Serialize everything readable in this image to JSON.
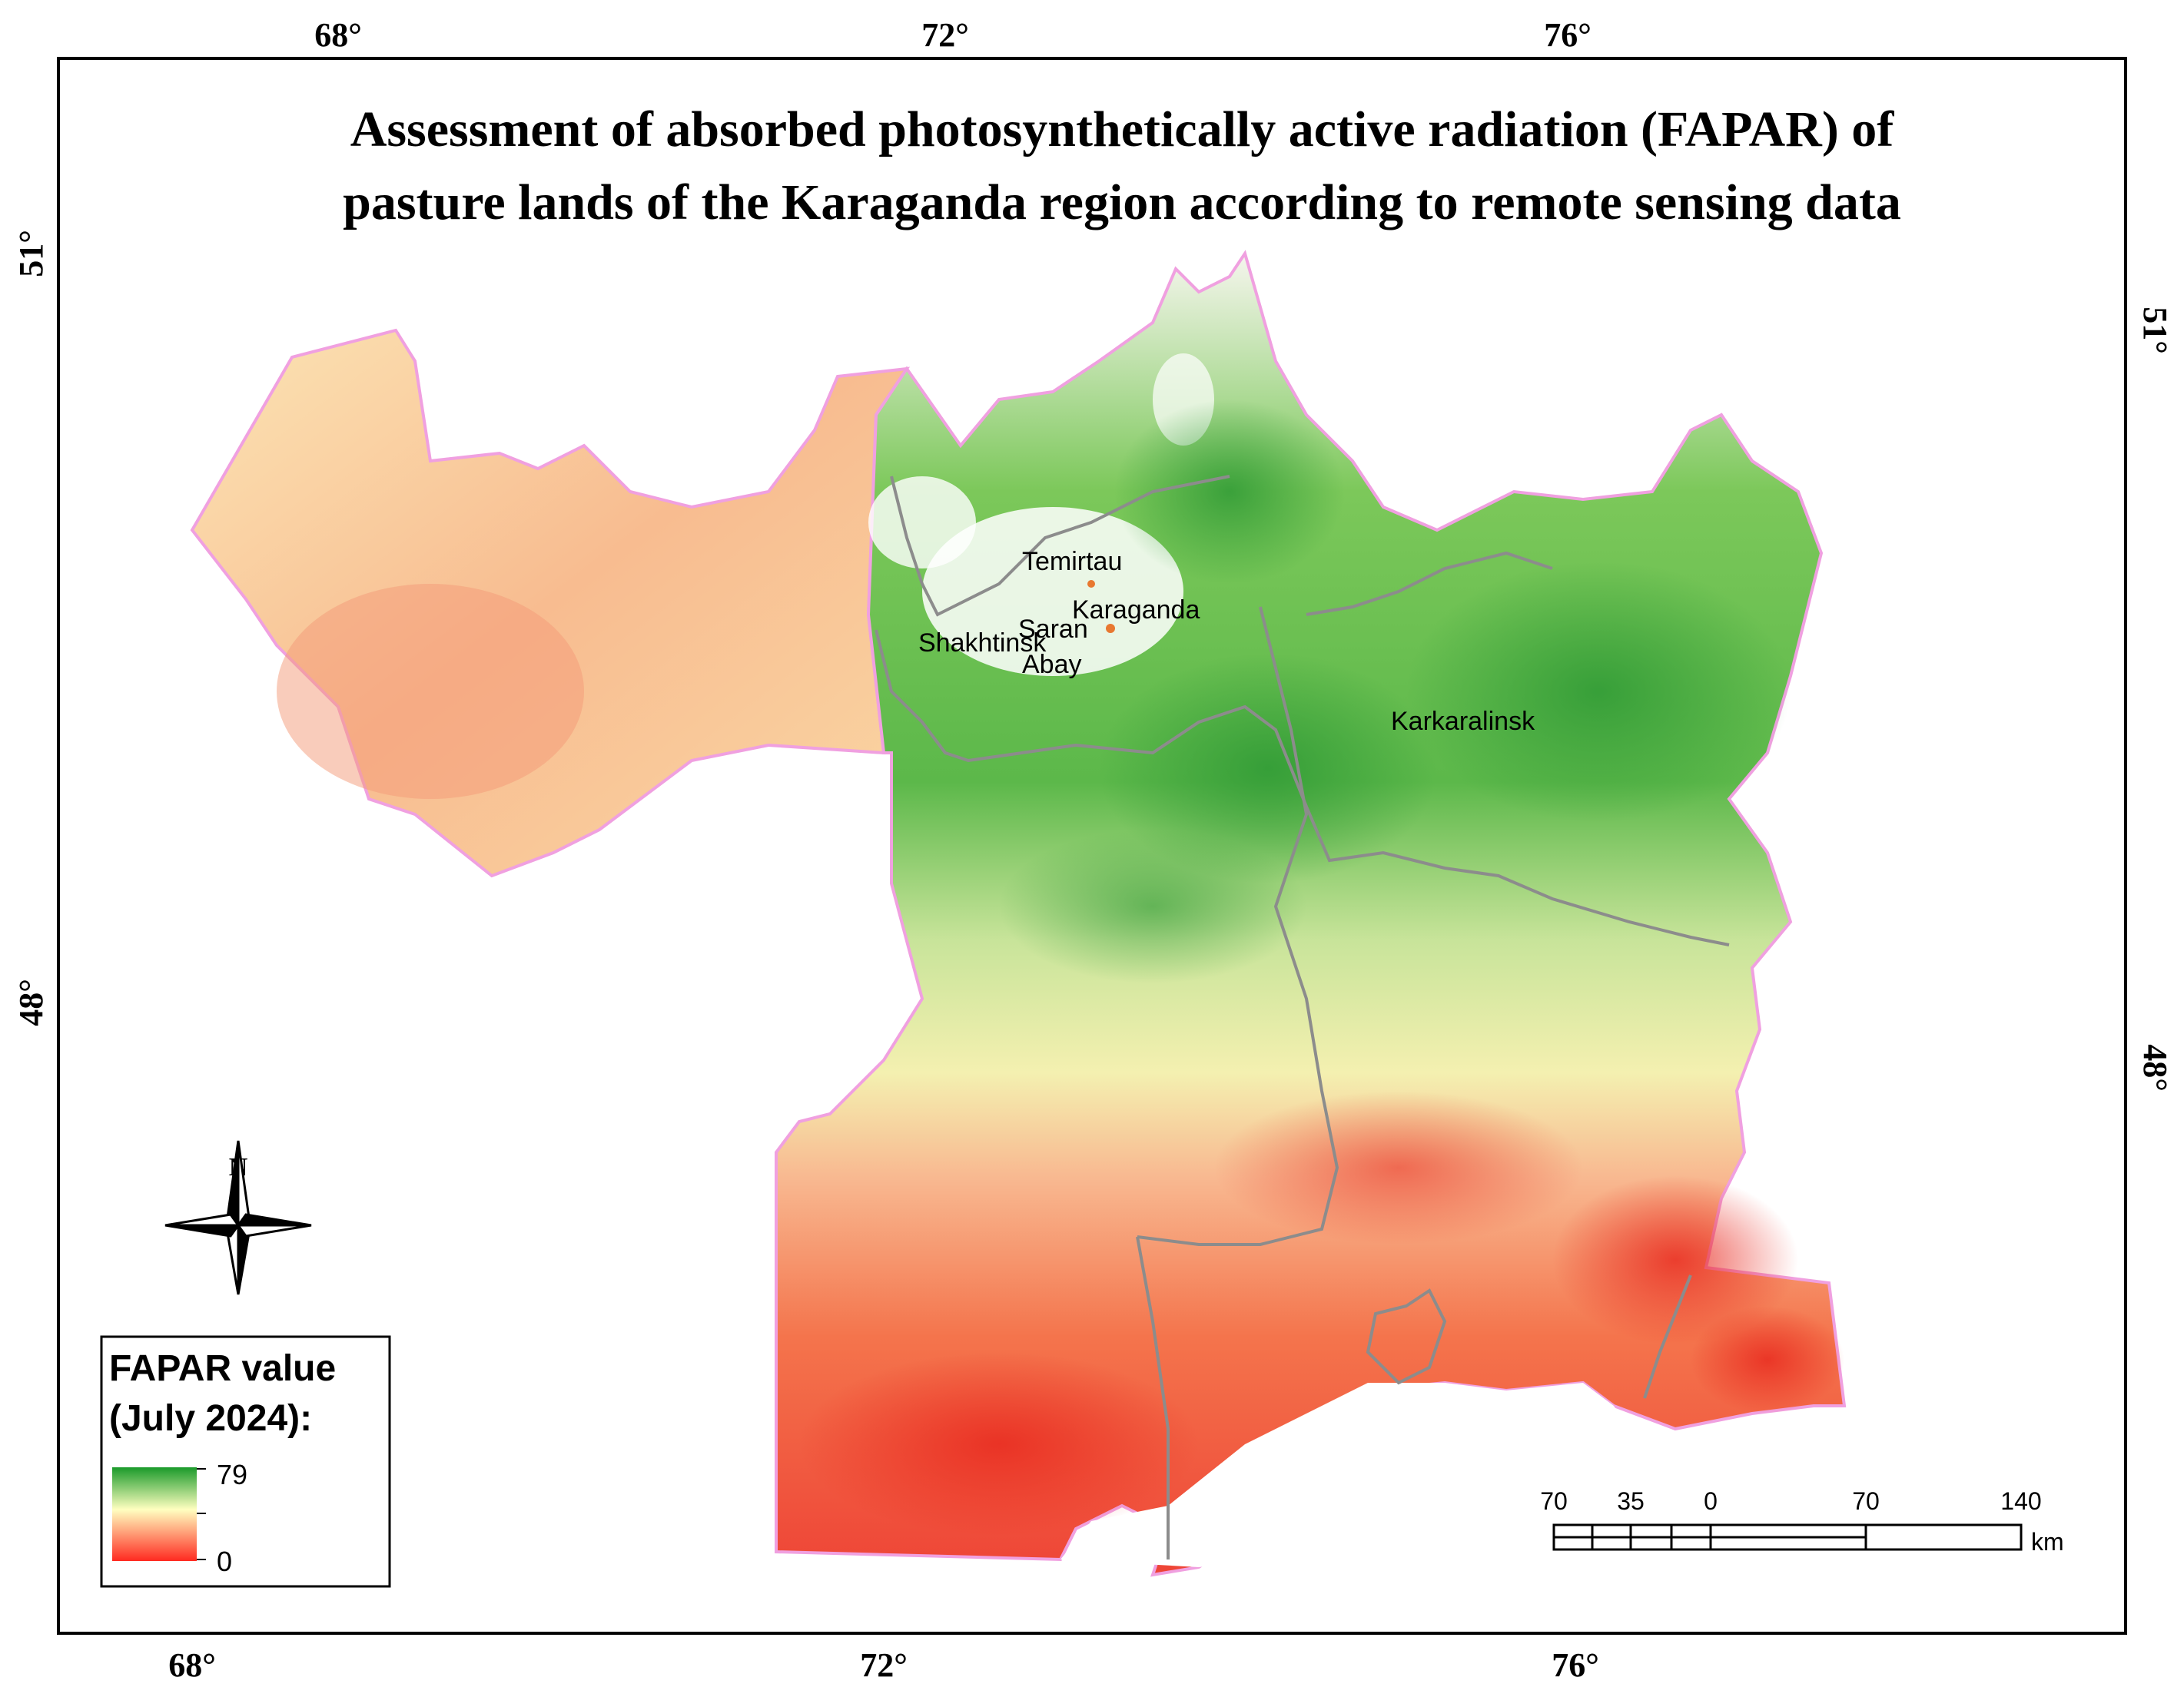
{
  "title": {
    "line1": "Assessment of absorbed photosynthetically active radiation (FAPAR) of",
    "line2": "pasture lands of the Karaganda region according to remote sensing data"
  },
  "graticule": {
    "top_lon": [
      "68°",
      "72°",
      "76°"
    ],
    "bottom_lon": [
      "68°",
      "72°",
      "76°"
    ],
    "left_lat": [
      "51°",
      "48°"
    ],
    "right_lat": [
      "51°",
      "48°"
    ]
  },
  "cities": {
    "temirtau": "Temirtau",
    "karaganda": "Karaganda",
    "saran": "Saran",
    "shakhtinsk": "Shakhtinsk",
    "abay": "Abay",
    "karkaralinsk": "Karkaralinsk"
  },
  "north_arrow": {
    "label": "N",
    "icon": "compass-rose-icon"
  },
  "legend": {
    "title_line1": "FAPAR value",
    "title_line2": "(July 2024):",
    "max_label": "79",
    "min_label": "0",
    "colors": {
      "high": "#1a9a2a",
      "mid": "#ffffc0",
      "low": "#ff2a20"
    }
  },
  "scale_bar": {
    "labels": [
      "70",
      "35",
      "0",
      "70",
      "140"
    ],
    "unit": "km"
  },
  "colors": {
    "region_border": "#f0a0e0",
    "district_border": "#8c8c8c",
    "frame": "#000000"
  }
}
